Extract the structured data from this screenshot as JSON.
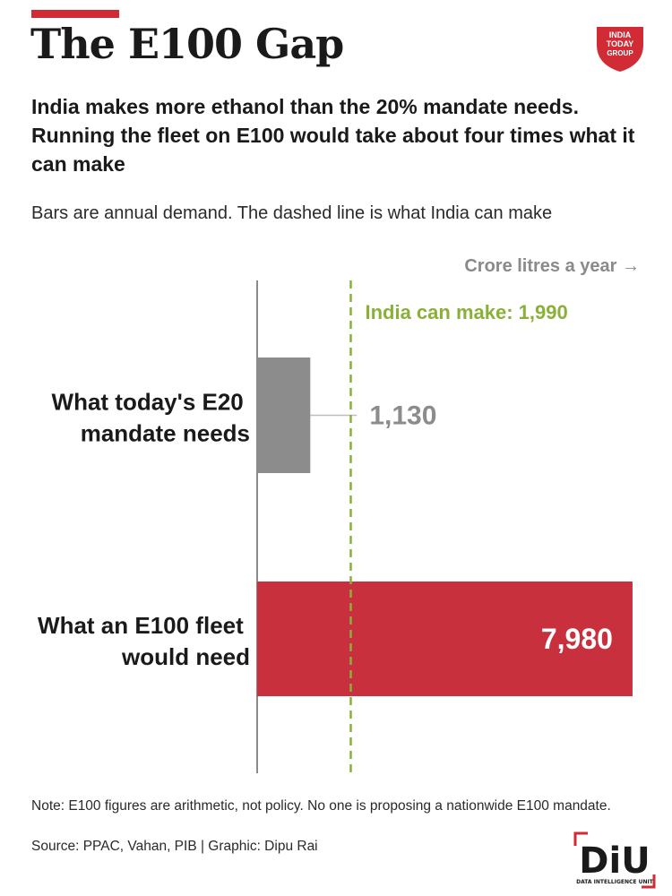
{
  "header": {
    "title": "The E100 Gap",
    "subtitle": "India makes more ethanol than the 20% mandate needs. Running the fleet on E100 would take about four times what it can make",
    "description": "Bars are annual demand. The dashed line is what India can make",
    "unit_label": "Crore litres a year →"
  },
  "brand": {
    "logo_text": [
      "INDIA",
      "TODAY",
      "GROUP"
    ],
    "diu_text": "DiU",
    "diu_subtext": "DATA INTELLIGENCE UNIT"
  },
  "colors": {
    "accent": "#d12b36",
    "bar_e20": "#8c8c8c",
    "bar_e100": "#c8303e",
    "capacity_line": "#8bb03a",
    "axis": "#8a8a8a"
  },
  "chart_data": {
    "type": "bar",
    "orientation": "horizontal",
    "categories": [
      [
        "What today's E20",
        "mandate needs"
      ],
      [
        "What an E100 fleet",
        "would need"
      ]
    ],
    "values": [
      1130,
      7980
    ],
    "value_labels": [
      "1,130",
      "7,980"
    ],
    "reference_line": {
      "value": 1990,
      "label": "India can make: 1,990",
      "style": "dashed"
    },
    "xlim": [
      0,
      8000
    ],
    "grid": false
  },
  "footer": {
    "note": "Note: E100 figures are arithmetic, not policy. No one is proposing a nationwide E100 mandate.",
    "source": "Source: PPAC, Vahan, PIB | Graphic: Dipu Rai"
  }
}
